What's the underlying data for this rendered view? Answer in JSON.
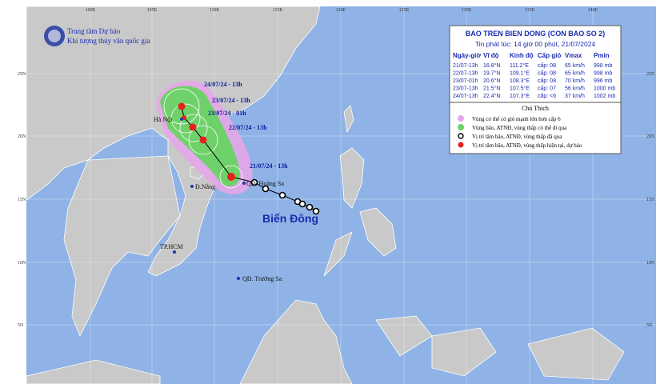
{
  "header": {
    "org_line1": "Trung tâm Dự báo",
    "org_line2": "Khí tượng thủy văn quốc gia"
  },
  "bulletin": {
    "title": "BAO TREN BIEN DONG (CON BAO SO 2)",
    "issued": "Tin phát lúc: 14 giờ 00 phút, 21/07/2024",
    "columns": [
      "Ngày-giờ",
      "Vĩ độ",
      "Kinh độ",
      "Cấp gió",
      "Vmax",
      "Pmin"
    ],
    "rows": [
      [
        "21/07-13h",
        "16.8°N",
        "111.2°E",
        "cấp: 08",
        "65 km/h",
        "998 mb"
      ],
      [
        "22/07-13h",
        "19.7°N",
        "109.1°E",
        "cấp: 08",
        "65 km/h",
        "998 mb"
      ],
      [
        "23/07-01h",
        "20.6°N",
        "108.3°E",
        "cấp: 08",
        "70 km/h",
        "996 mb"
      ],
      [
        "23/07-13h",
        "21.5°N",
        "107.5°E",
        "cấp: 07",
        "56 km/h",
        "1000 mb"
      ],
      [
        "24/07-13h",
        "22.4°N",
        "107.3°E",
        "cấp: <6",
        "37 km/h",
        "1002 mb"
      ]
    ]
  },
  "legend": {
    "title": "Chú Thích",
    "items": [
      "Vùng có thể có gió mạnh lớn hơn cấp 6",
      "Vùng bão, ATNĐ, vùng thấp có thể đi qua",
      "Vị trí tâm bão, ATNĐ, vùng thấp đã qua",
      "Vị trí tâm bão, ATNĐ, vùng thấp hiện tại, dự báo"
    ]
  },
  "map": {
    "lon_labels": [
      "100E",
      "105E",
      "110E",
      "115E",
      "120E",
      "125E",
      "130E",
      "135E",
      "140E"
    ],
    "lat_labels": [
      "25N",
      "20N",
      "15N",
      "10N",
      "5N"
    ],
    "places": [
      "Hà Nội",
      "Đ.Nẵng",
      "TP.HCM",
      "QĐ. Hoàng Sa",
      "QĐ. Trường Sa"
    ],
    "sea": "Biển Đông",
    "forecast_labels": [
      "24/07/24 - 13h",
      "23/07/24 - 13h",
      "23/07/24 - 01h",
      "22/07/24 - 13h",
      "21/07/24 - 13h"
    ]
  }
}
